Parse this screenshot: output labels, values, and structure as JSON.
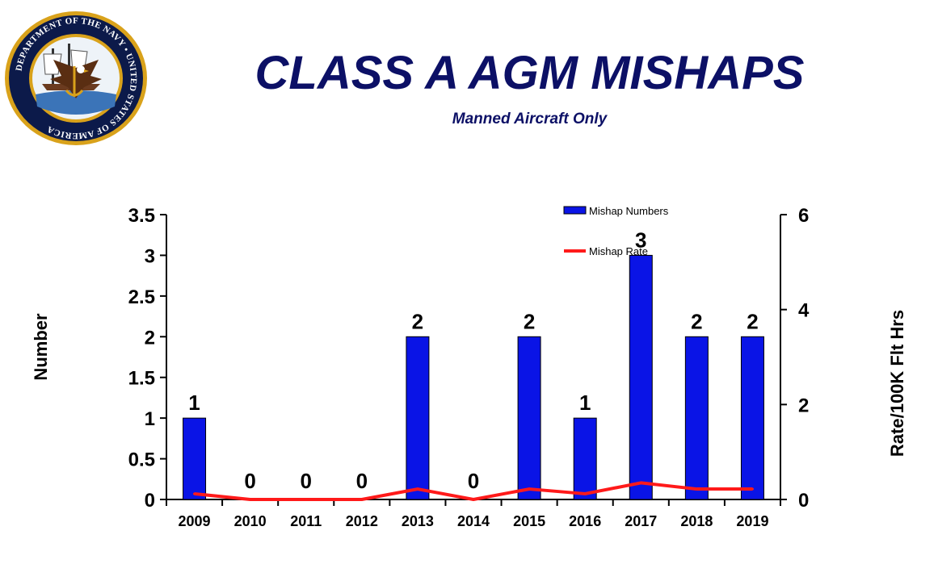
{
  "header": {
    "title": "CLASS A AGM MISHAPS",
    "subtitle": "Manned Aircraft  Only"
  },
  "seal": {
    "icon": "department-of-the-navy-seal",
    "text": "DEPARTMENT OF THE NAVY • UNITED STATES OF AMERICA"
  },
  "colors": {
    "title": "#0c1066",
    "bar": "#0a14e6",
    "line": "#ff1a1a",
    "seal_ring": "#0c1a4a",
    "seal_gold": "#d9a21b"
  },
  "chart_data": {
    "type": "bar",
    "categories": [
      "2009",
      "2010",
      "2011",
      "2012",
      "2013",
      "2014",
      "2015",
      "2016",
      "2017",
      "2018",
      "2019"
    ],
    "series": [
      {
        "name": "Mishap Numbers",
        "type": "bar",
        "axis": "left",
        "values": [
          1,
          0,
          0,
          0,
          2,
          0,
          2,
          1,
          3,
          2,
          2
        ],
        "data_labels": [
          "1",
          "0",
          "0",
          "0",
          "2",
          "0",
          "2",
          "1",
          "3",
          "2",
          "2"
        ]
      },
      {
        "name": "Mishap Rate",
        "type": "line",
        "axis": "right",
        "values": [
          0.12,
          0.0,
          0.0,
          0.0,
          0.22,
          0.0,
          0.22,
          0.12,
          0.35,
          0.22,
          0.22
        ]
      }
    ],
    "ylabel": "Number",
    "y2label": "Rate/100K Flt Hrs",
    "ylim": [
      0,
      3.5
    ],
    "yticks": [
      "0",
      "0.5",
      "1",
      "1.5",
      "2",
      "2.5",
      "3",
      "3.5"
    ],
    "y2lim": [
      0,
      6
    ],
    "y2ticks": [
      "0",
      "2",
      "4",
      "6"
    ],
    "legend": "top-right",
    "grid": false
  }
}
